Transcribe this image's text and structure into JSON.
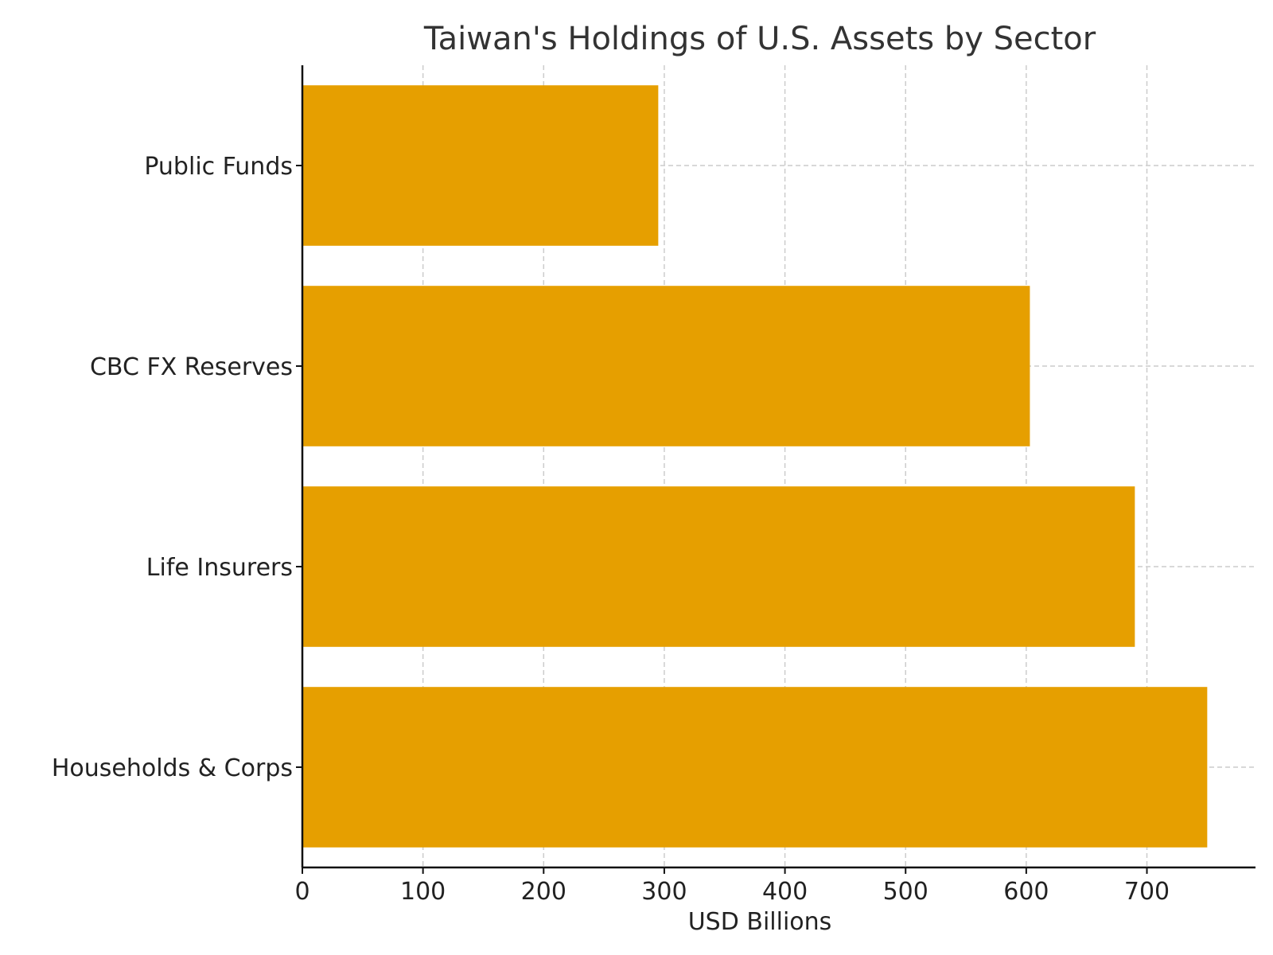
{
  "chart_data": {
    "type": "bar",
    "orientation": "horizontal",
    "title": "Taiwan's Holdings of U.S. Assets by Sector",
    "xlabel": "USD Billions",
    "ylabel": "",
    "categories": [
      "Households & Corps",
      "Life Insurers",
      "CBC FX Reserves",
      "Public Funds"
    ],
    "values": [
      750,
      690,
      603,
      295
    ],
    "xlim": [
      0,
      790
    ],
    "xticks": [
      0,
      100,
      200,
      300,
      400,
      500,
      600,
      700
    ],
    "grid": true,
    "bar_color": "#E69F00",
    "legend": "none"
  }
}
